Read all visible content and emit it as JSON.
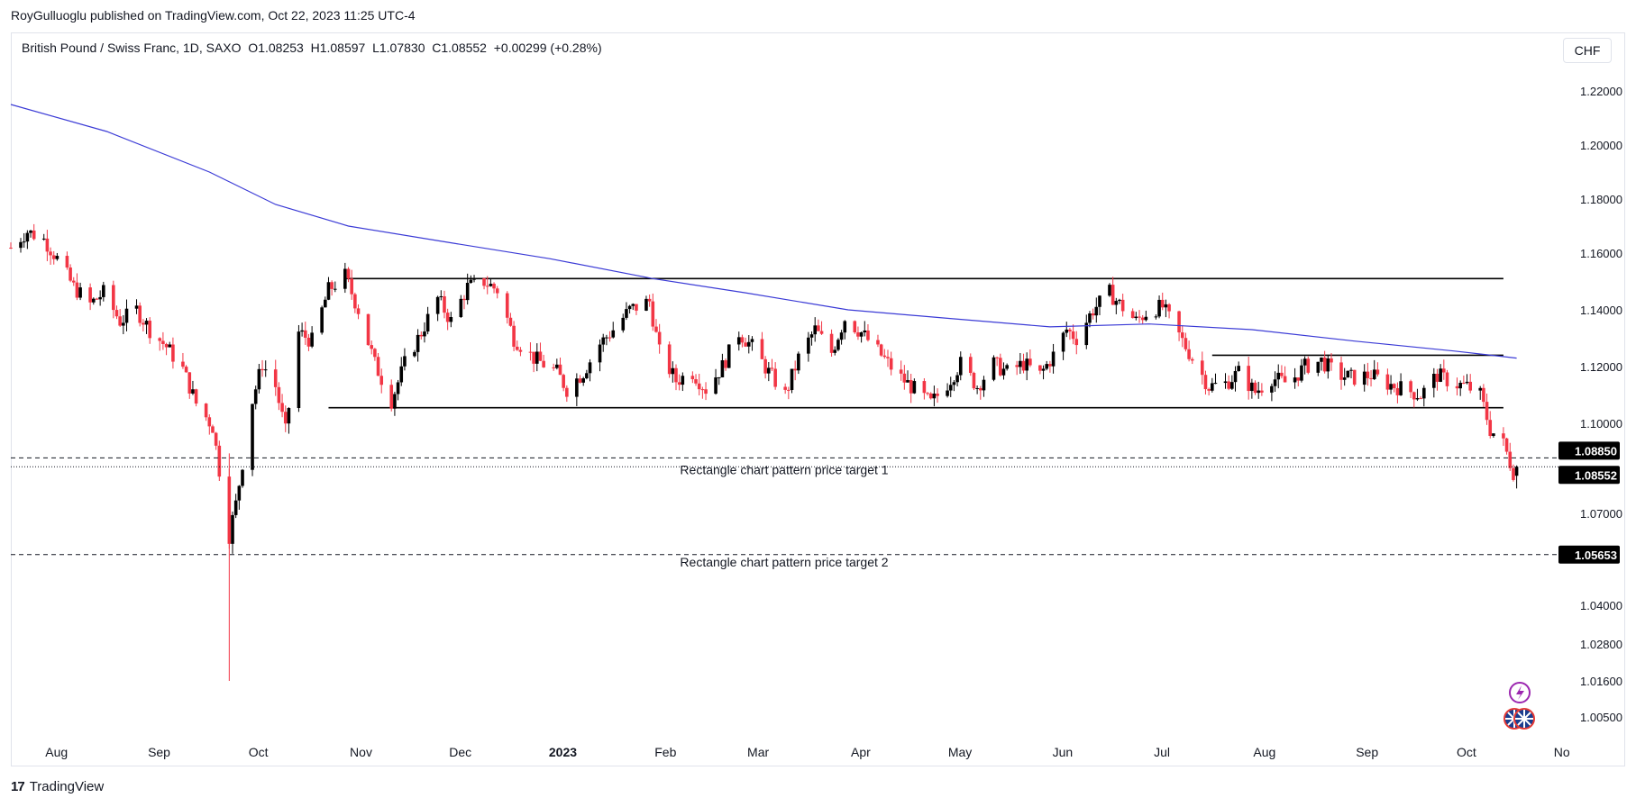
{
  "header": {
    "publisher": "RoyGulluoglu published on TradingView.com, Oct 22, 2023 11:25 UTC-4",
    "symbol_line": "British Pound / Swiss Franc, 1D, SAXO  O1.08253  H1.08597  L1.07830  C1.08552  +0.00299 (+0.28%)",
    "currency": "CHF"
  },
  "footer": {
    "brand_logo": "17",
    "brand_name": "TradingView"
  },
  "colors": {
    "up": "#000000",
    "down": "#f23645",
    "ma": "#3b3bd6",
    "price_tag": "#000000"
  },
  "chart_data": {
    "type": "candlestick",
    "symbol": "British Pound / Swiss Franc",
    "interval": "1D",
    "exchange": "SAXO",
    "ohlc_last": {
      "open": 1.08253,
      "high": 1.08597,
      "low": 1.0783,
      "close": 1.08552,
      "change": 0.00299,
      "change_pct": "+0.28%"
    },
    "y_ticks": [
      1.22,
      1.2,
      1.18,
      1.16,
      1.14,
      1.12,
      1.1,
      1.07,
      1.04,
      1.028,
      1.016,
      1.005
    ],
    "y_tick_labels": [
      "1.22000",
      "1.20000",
      "1.18000",
      "1.16000",
      "1.14000",
      "1.12000",
      "1.10000",
      "1.07000",
      "1.04000",
      "1.02800",
      "1.01600",
      "1.00500"
    ],
    "x_labels": [
      {
        "label": "Aug",
        "date": "2022-08-01",
        "bold": false
      },
      {
        "label": "Sep",
        "date": "2022-09-01",
        "bold": false
      },
      {
        "label": "Oct",
        "date": "2022-10-01",
        "bold": false
      },
      {
        "label": "Nov",
        "date": "2022-11-01",
        "bold": false
      },
      {
        "label": "Dec",
        "date": "2022-12-01",
        "bold": false
      },
      {
        "label": "2023",
        "date": "2023-01-01",
        "bold": true
      },
      {
        "label": "Feb",
        "date": "2023-02-01",
        "bold": false
      },
      {
        "label": "Mar",
        "date": "2023-03-01",
        "bold": false
      },
      {
        "label": "Apr",
        "date": "2023-04-01",
        "bold": false
      },
      {
        "label": "May",
        "date": "2023-05-01",
        "bold": false
      },
      {
        "label": "Jun",
        "date": "2023-06-01",
        "bold": false
      },
      {
        "label": "Jul",
        "date": "2023-07-01",
        "bold": false
      },
      {
        "label": "Aug",
        "date": "2023-08-01",
        "bold": false
      },
      {
        "label": "Sep",
        "date": "2023-09-01",
        "bold": false
      },
      {
        "label": "Oct",
        "date": "2023-10-01",
        "bold": false
      },
      {
        "label": "No",
        "date": "2023-11-01",
        "bold": false
      }
    ],
    "close_series": [
      {
        "date": "2022-07-22",
        "close": 1.162
      },
      {
        "date": "2022-07-27",
        "close": 1.168
      },
      {
        "date": "2022-08-01",
        "close": 1.165
      },
      {
        "date": "2022-08-05",
        "close": 1.158
      },
      {
        "date": "2022-08-10",
        "close": 1.148
      },
      {
        "date": "2022-08-15",
        "close": 1.142
      },
      {
        "date": "2022-08-19",
        "close": 1.146
      },
      {
        "date": "2022-08-24",
        "close": 1.136
      },
      {
        "date": "2022-08-29",
        "close": 1.14
      },
      {
        "date": "2022-09-02",
        "close": 1.133
      },
      {
        "date": "2022-09-07",
        "close": 1.127
      },
      {
        "date": "2022-09-12",
        "close": 1.119
      },
      {
        "date": "2022-09-16",
        "close": 1.107
      },
      {
        "date": "2022-09-21",
        "close": 1.099
      },
      {
        "date": "2022-09-26",
        "close": 1.063
      },
      {
        "date": "2022-09-28",
        "close": 1.073
      },
      {
        "date": "2022-10-03",
        "close": 1.108
      },
      {
        "date": "2022-10-06",
        "close": 1.121
      },
      {
        "date": "2022-10-10",
        "close": 1.113
      },
      {
        "date": "2022-10-13",
        "close": 1.097
      },
      {
        "date": "2022-10-17",
        "close": 1.132
      },
      {
        "date": "2022-10-21",
        "close": 1.129
      },
      {
        "date": "2022-10-26",
        "close": 1.147
      },
      {
        "date": "2022-10-31",
        "close": 1.152
      },
      {
        "date": "2022-11-04",
        "close": 1.14
      },
      {
        "date": "2022-11-09",
        "close": 1.121
      },
      {
        "date": "2022-11-14",
        "close": 1.108
      },
      {
        "date": "2022-11-18",
        "close": 1.121
      },
      {
        "date": "2022-11-23",
        "close": 1.132
      },
      {
        "date": "2022-11-28",
        "close": 1.144
      },
      {
        "date": "2022-12-02",
        "close": 1.136
      },
      {
        "date": "2022-12-07",
        "close": 1.148
      },
      {
        "date": "2022-12-12",
        "close": 1.15
      },
      {
        "date": "2022-12-16",
        "close": 1.147
      },
      {
        "date": "2022-12-21",
        "close": 1.13
      },
      {
        "date": "2022-12-27",
        "close": 1.123
      },
      {
        "date": "2023-01-03",
        "close": 1.118
      },
      {
        "date": "2023-01-06",
        "close": 1.112
      },
      {
        "date": "2023-01-11",
        "close": 1.118
      },
      {
        "date": "2023-01-16",
        "close": 1.128
      },
      {
        "date": "2023-01-20",
        "close": 1.133
      },
      {
        "date": "2023-01-25",
        "close": 1.14
      },
      {
        "date": "2023-01-31",
        "close": 1.143
      },
      {
        "date": "2023-02-03",
        "close": 1.125
      },
      {
        "date": "2023-02-08",
        "close": 1.115
      },
      {
        "date": "2023-02-13",
        "close": 1.118
      },
      {
        "date": "2023-02-17",
        "close": 1.112
      },
      {
        "date": "2023-02-22",
        "close": 1.12
      },
      {
        "date": "2023-02-27",
        "close": 1.132
      },
      {
        "date": "2023-03-03",
        "close": 1.127
      },
      {
        "date": "2023-03-08",
        "close": 1.118
      },
      {
        "date": "2023-03-13",
        "close": 1.11
      },
      {
        "date": "2023-03-17",
        "close": 1.123
      },
      {
        "date": "2023-03-22",
        "close": 1.133
      },
      {
        "date": "2023-03-27",
        "close": 1.125
      },
      {
        "date": "2023-03-31",
        "close": 1.137
      },
      {
        "date": "2023-04-05",
        "close": 1.132
      },
      {
        "date": "2023-04-11",
        "close": 1.124
      },
      {
        "date": "2023-04-16",
        "close": 1.117
      },
      {
        "date": "2023-04-21",
        "close": 1.112
      },
      {
        "date": "2023-04-26",
        "close": 1.107
      },
      {
        "date": "2023-05-01",
        "close": 1.114
      },
      {
        "date": "2023-05-05",
        "close": 1.121
      },
      {
        "date": "2023-05-10",
        "close": 1.113
      },
      {
        "date": "2023-05-15",
        "close": 1.121
      },
      {
        "date": "2023-05-19",
        "close": 1.118
      },
      {
        "date": "2023-05-24",
        "close": 1.121
      },
      {
        "date": "2023-05-29",
        "close": 1.117
      },
      {
        "date": "2023-06-02",
        "close": 1.124
      },
      {
        "date": "2023-06-06",
        "close": 1.133
      },
      {
        "date": "2023-06-09",
        "close": 1.13
      },
      {
        "date": "2023-06-14",
        "close": 1.14
      },
      {
        "date": "2023-06-19",
        "close": 1.146
      },
      {
        "date": "2023-06-22",
        "close": 1.142
      },
      {
        "date": "2023-06-27",
        "close": 1.136
      },
      {
        "date": "2023-07-01",
        "close": 1.14
      },
      {
        "date": "2023-07-05",
        "close": 1.141
      },
      {
        "date": "2023-07-10",
        "close": 1.131
      },
      {
        "date": "2023-07-14",
        "close": 1.123
      },
      {
        "date": "2023-07-19",
        "close": 1.113
      },
      {
        "date": "2023-07-24",
        "close": 1.114
      },
      {
        "date": "2023-07-28",
        "close": 1.118
      },
      {
        "date": "2023-08-02",
        "close": 1.111
      },
      {
        "date": "2023-08-07",
        "close": 1.116
      },
      {
        "date": "2023-08-12",
        "close": 1.114
      },
      {
        "date": "2023-08-17",
        "close": 1.12
      },
      {
        "date": "2023-08-22",
        "close": 1.122
      },
      {
        "date": "2023-08-27",
        "close": 1.117
      },
      {
        "date": "2023-09-01",
        "close": 1.116
      },
      {
        "date": "2023-09-06",
        "close": 1.117
      },
      {
        "date": "2023-09-11",
        "close": 1.114
      },
      {
        "date": "2023-09-16",
        "close": 1.112
      },
      {
        "date": "2023-09-21",
        "close": 1.11
      },
      {
        "date": "2023-09-26",
        "close": 1.117
      },
      {
        "date": "2023-10-01",
        "close": 1.114
      },
      {
        "date": "2023-10-05",
        "close": 1.113
      },
      {
        "date": "2023-10-09",
        "close": 1.11
      },
      {
        "date": "2023-10-12",
        "close": 1.098
      },
      {
        "date": "2023-10-16",
        "close": 1.093
      },
      {
        "date": "2023-10-19",
        "close": 1.084
      },
      {
        "date": "2023-10-20",
        "close": 1.0855
      }
    ],
    "series": [
      {
        "type": "moving_average",
        "points": [
          {
            "date": "2022-07-22",
            "value": 1.215
          },
          {
            "date": "2022-08-20",
            "value": 1.205
          },
          {
            "date": "2022-09-20",
            "value": 1.19
          },
          {
            "date": "2022-10-10",
            "value": 1.178
          },
          {
            "date": "2022-11-01",
            "value": 1.17
          },
          {
            "date": "2022-12-01",
            "value": 1.164
          },
          {
            "date": "2023-01-01",
            "value": 1.158
          },
          {
            "date": "2023-02-01",
            "value": 1.151
          },
          {
            "date": "2023-03-01",
            "value": 1.146
          },
          {
            "date": "2023-04-01",
            "value": 1.14
          },
          {
            "date": "2023-05-01",
            "value": 1.137
          },
          {
            "date": "2023-06-01",
            "value": 1.134
          },
          {
            "date": "2023-07-01",
            "value": 1.135
          },
          {
            "date": "2023-08-01",
            "value": 1.133
          },
          {
            "date": "2023-09-01",
            "value": 1.129
          },
          {
            "date": "2023-10-01",
            "value": 1.1255
          },
          {
            "date": "2023-10-20",
            "value": 1.123
          }
        ]
      }
    ],
    "trendlines": [
      {
        "name": "rectangle-top",
        "y": 1.151,
        "from": "2022-10-31",
        "to": "2023-10-16"
      },
      {
        "name": "rectangle-bottom",
        "y": 1.1055,
        "from": "2022-10-26",
        "to": "2023-10-16"
      },
      {
        "name": "inner-top",
        "y": 1.124,
        "from": "2023-07-20",
        "to": "2023-10-16"
      }
    ],
    "annotations": [
      {
        "label": "Rectangle chart pattern price target 1",
        "price": 1.0885
      },
      {
        "label": "Rectangle chart pattern price target 2",
        "price": 1.05653
      }
    ],
    "price_tags": [
      "1.08850",
      "1.08552",
      "1.05653"
    ],
    "current_price": 1.08552
  }
}
